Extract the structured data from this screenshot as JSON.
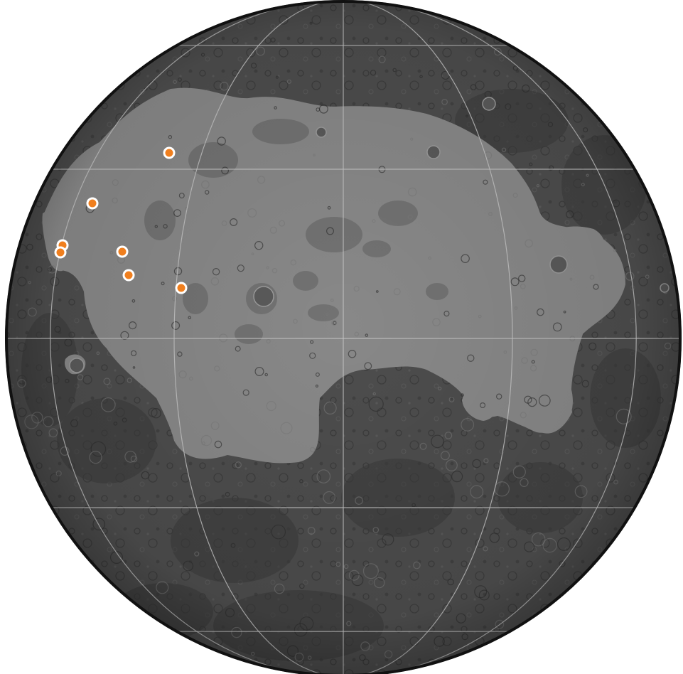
{
  "map": {
    "body": "Moon",
    "projection": "orthographic",
    "colors": {
      "background": "#ffffff",
      "highlands": "#4d4d4d",
      "highlands_dark": "#3a3a3a",
      "mare": "#888888",
      "mare_dark": "#6e6e6e",
      "crater_shadow": "#2c2c2c",
      "graticule": "#c4c4c4",
      "limb": "#111111",
      "marker_fill": "#f07f1e",
      "marker_stroke": "#ffffff"
    },
    "graticule": {
      "parallel_step_deg": 30,
      "meridian_step_deg": 30
    },
    "sites": [
      {
        "id": "site-1"
      },
      {
        "id": "site-2"
      },
      {
        "id": "site-3"
      },
      {
        "id": "site-4"
      },
      {
        "id": "site-5"
      },
      {
        "id": "site-6"
      },
      {
        "id": "site-7"
      },
      {
        "id": "site-8"
      }
    ]
  }
}
